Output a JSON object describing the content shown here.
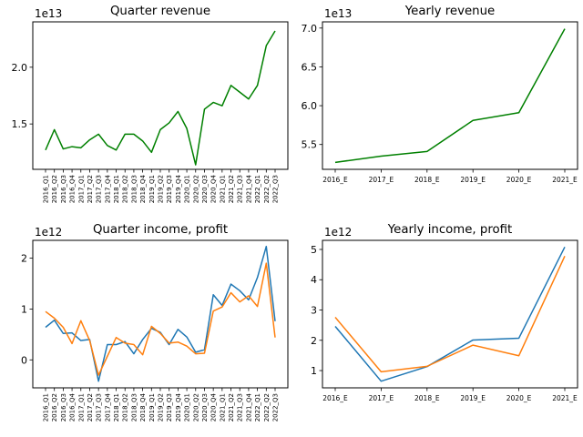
{
  "chart_data": [
    {
      "type": "line",
      "title": "Quarter revenue",
      "offset_text": "1e13",
      "y_scale": 10000000000000.0,
      "categories": [
        "2016_Q1",
        "2016_Q2",
        "2016_Q3",
        "2016_Q4",
        "2017_Q1",
        "2017_Q2",
        "2017_Q3",
        "2017_Q4",
        "2018_Q1",
        "2018_Q2",
        "2018_Q3",
        "2018_Q4",
        "2019_Q1",
        "2019_Q2",
        "2019_Q3",
        "2019_Q4",
        "2020_Q1",
        "2020_Q2",
        "2020_Q3",
        "2020_Q4",
        "2021_Q1",
        "2021_Q2",
        "2021_Q3",
        "2021_Q4",
        "2022_Q1",
        "2022_Q2",
        "2022_Q3"
      ],
      "series": [
        {
          "color": "#008000",
          "values": [
            1.27,
            1.45,
            1.28,
            1.3,
            1.29,
            1.36,
            1.41,
            1.31,
            1.27,
            1.41,
            1.41,
            1.35,
            1.25,
            1.45,
            1.51,
            1.61,
            1.46,
            1.14,
            1.63,
            1.69,
            1.66,
            1.84,
            1.78,
            1.72,
            1.84,
            2.19,
            2.32
          ]
        }
      ],
      "ylim": [
        1.1,
        2.4
      ],
      "yticks": [
        {
          "value": 1.5,
          "label": "1.5"
        },
        {
          "value": 2.0,
          "label": "2.0"
        }
      ]
    },
    {
      "type": "line",
      "title": "Yearly revenue",
      "offset_text": "1e13",
      "y_scale": 10000000000000.0,
      "categories": [
        "2016_E",
        "2017_E",
        "2018_E",
        "2019_E",
        "2020_E",
        "2021_E"
      ],
      "series": [
        {
          "color": "#008000",
          "values": [
            5.27,
            5.35,
            5.41,
            5.81,
            5.91,
            6.99
          ]
        }
      ],
      "ylim": [
        5.18,
        7.08
      ],
      "yticks": [
        {
          "value": 5.5,
          "label": "5.5"
        },
        {
          "value": 6.0,
          "label": "6.0"
        },
        {
          "value": 6.5,
          "label": "6.5"
        },
        {
          "value": 7.0,
          "label": "7.0"
        }
      ]
    },
    {
      "type": "line",
      "title": "Quarter income, profit",
      "offset_text": "1e12",
      "y_scale": 1000000000000.0,
      "categories": [
        "2016_Q1",
        "2016_Q2",
        "2016_Q3",
        "2016_Q4",
        "2017_Q1",
        "2017_Q2",
        "2017_Q3",
        "2017_Q4",
        "2018_Q1",
        "2018_Q2",
        "2018_Q3",
        "2018_Q4",
        "2019_Q1",
        "2019_Q2",
        "2019_Q3",
        "2019_Q4",
        "2020_Q1",
        "2020_Q2",
        "2020_Q3",
        "2020_Q4",
        "2021_Q1",
        "2021_Q2",
        "2021_Q3",
        "2021_Q4",
        "2022_Q1",
        "2022_Q2",
        "2022_Q3"
      ],
      "series": [
        {
          "color": "#1f77b4",
          "values": [
            0.64,
            0.78,
            0.52,
            0.53,
            0.38,
            0.4,
            -0.42,
            0.3,
            0.3,
            0.36,
            0.12,
            0.4,
            0.62,
            0.54,
            0.3,
            0.6,
            0.45,
            0.15,
            0.2,
            1.28,
            1.07,
            1.49,
            1.36,
            1.18,
            1.62,
            2.23,
            0.76
          ]
        },
        {
          "color": "#ff7f0e",
          "values": [
            0.95,
            0.82,
            0.64,
            0.32,
            0.77,
            0.38,
            -0.3,
            0.07,
            0.44,
            0.33,
            0.3,
            0.1,
            0.66,
            0.52,
            0.33,
            0.35,
            0.27,
            0.12,
            0.13,
            0.96,
            1.04,
            1.32,
            1.14,
            1.26,
            1.05,
            1.9,
            0.44
          ]
        }
      ],
      "ylim": [
        -0.55,
        2.35
      ],
      "yticks": [
        {
          "value": 0,
          "label": "0"
        },
        {
          "value": 1,
          "label": "1"
        },
        {
          "value": 2,
          "label": "2"
        }
      ]
    },
    {
      "type": "line",
      "title": "Yearly income, profit",
      "offset_text": "1e12",
      "y_scale": 1000000000000.0,
      "categories": [
        "2016_E",
        "2017_E",
        "2018_E",
        "2019_E",
        "2020_E",
        "2021_E"
      ],
      "series": [
        {
          "color": "#1f77b4",
          "values": [
            2.46,
            0.65,
            1.13,
            2.01,
            2.07,
            5.08
          ]
        },
        {
          "color": "#ff7f0e",
          "values": [
            2.76,
            0.96,
            1.14,
            1.84,
            1.49,
            4.78
          ]
        }
      ],
      "ylim": [
        0.43,
        5.3
      ],
      "yticks": [
        {
          "value": 1,
          "label": "1"
        },
        {
          "value": 2,
          "label": "2"
        },
        {
          "value": 3,
          "label": "3"
        },
        {
          "value": 4,
          "label": "4"
        },
        {
          "value": 5,
          "label": "5"
        }
      ]
    }
  ]
}
